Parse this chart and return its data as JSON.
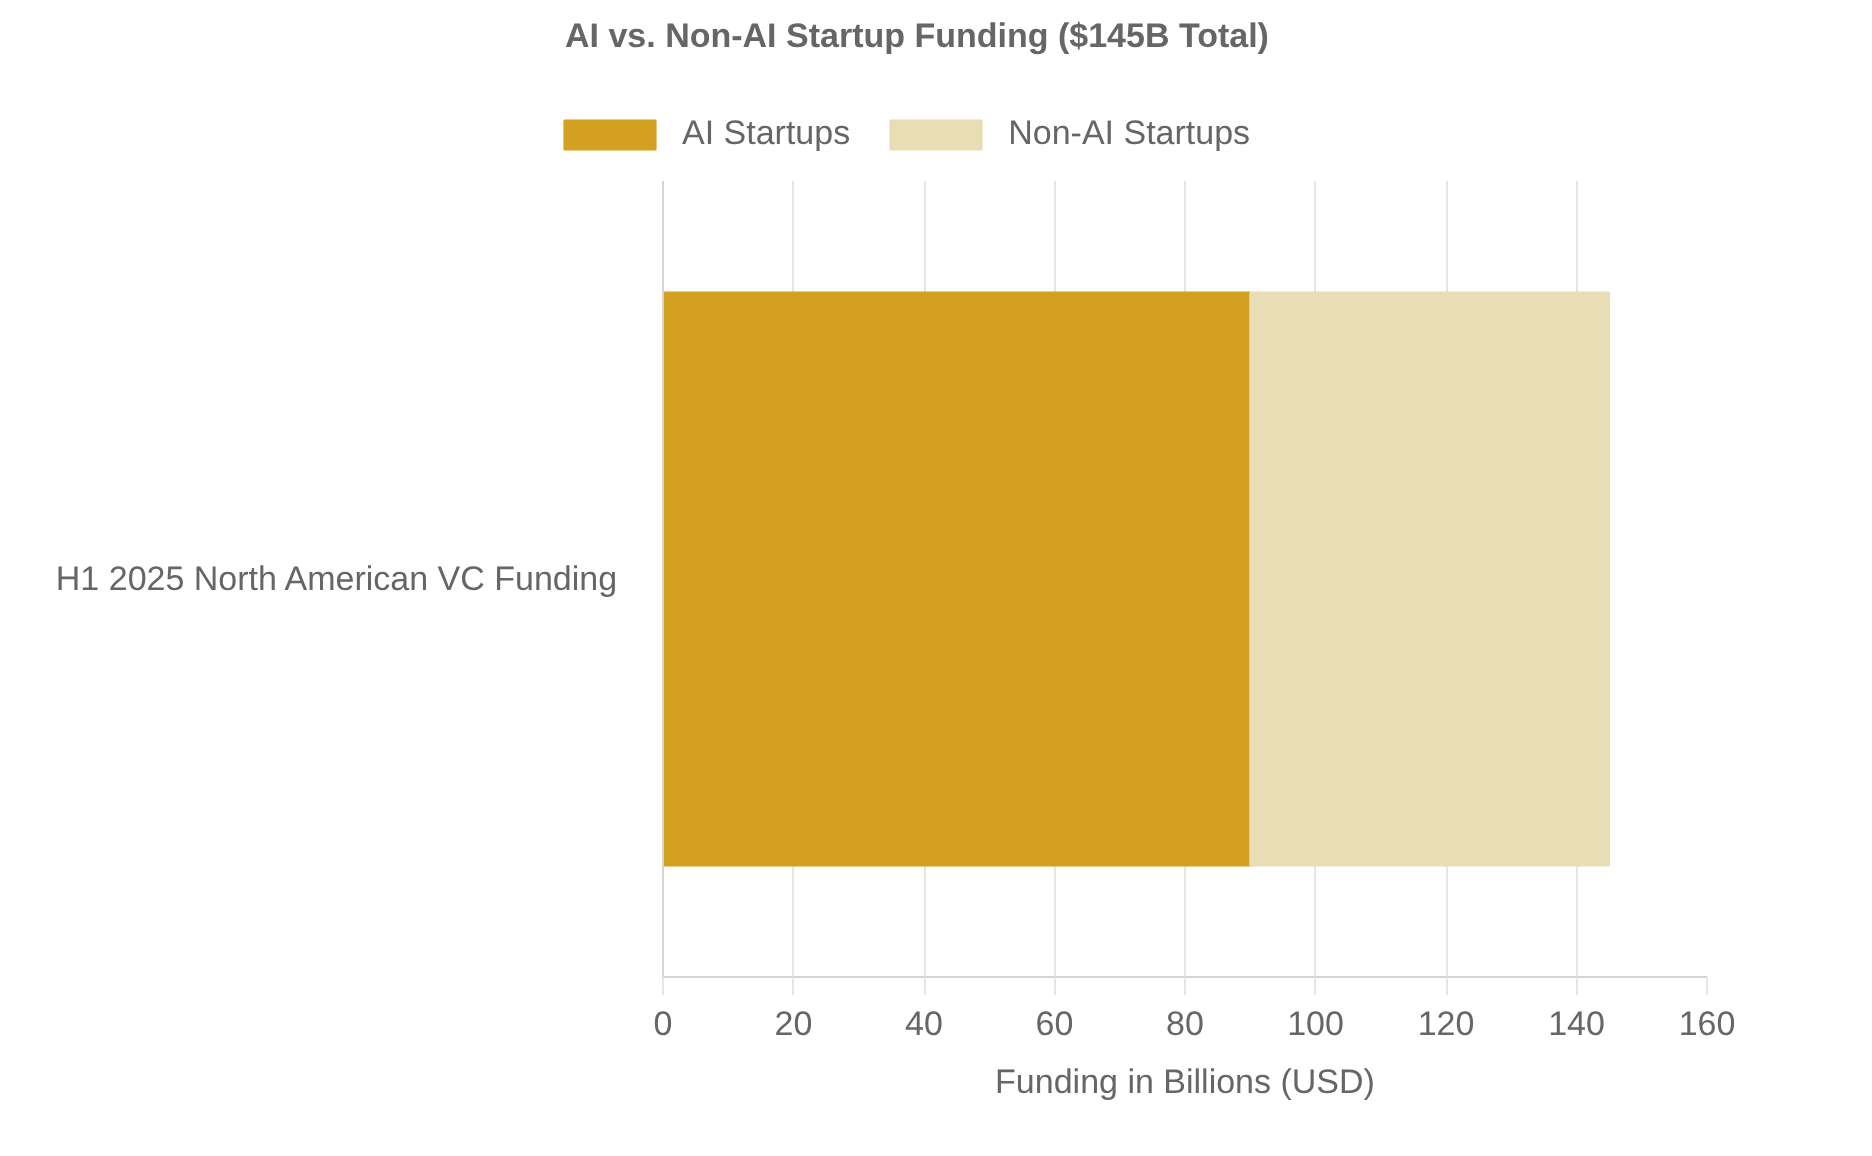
{
  "chart_data": {
    "type": "bar",
    "orientation": "horizontal",
    "stacked": true,
    "title": "AI vs. Non-AI Startup Funding ($145B Total)",
    "xlabel": "Funding in Billions (USD)",
    "categories": [
      "H1 2025 North American VC Funding"
    ],
    "series": [
      {
        "name": "AI Startups",
        "color": "#d4a021",
        "values": [
          90
        ]
      },
      {
        "name": "Non-AI Startups",
        "color": "#e8ddb5",
        "values": [
          55
        ]
      }
    ],
    "xlim": [
      0,
      160
    ],
    "xticks": [
      0,
      20,
      40,
      60,
      80,
      100,
      120,
      140,
      160
    ],
    "grid": true,
    "legend": "top"
  }
}
